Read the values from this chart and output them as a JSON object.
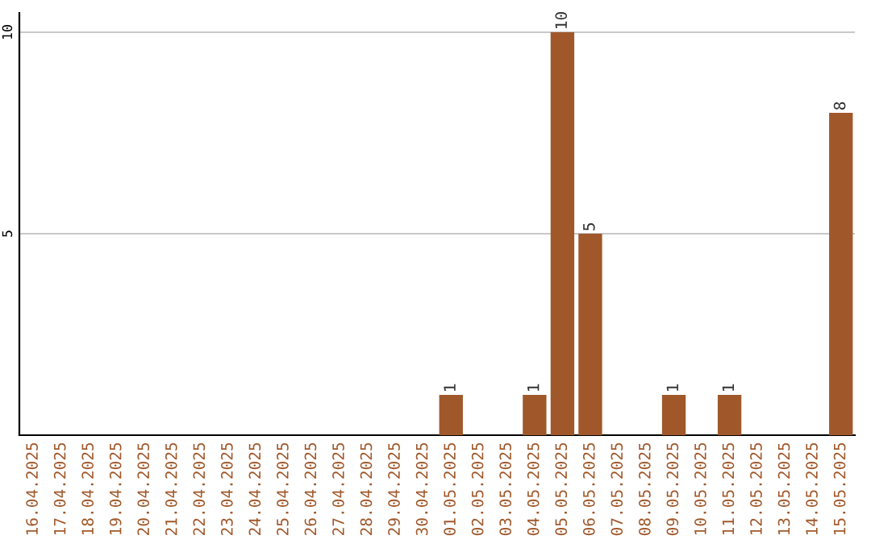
{
  "chart_data": {
    "type": "bar",
    "categories": [
      "16.04.2025",
      "17.04.2025",
      "18.04.2025",
      "19.04.2025",
      "20.04.2025",
      "21.04.2025",
      "22.04.2025",
      "23.04.2025",
      "24.04.2025",
      "25.04.2025",
      "26.04.2025",
      "27.04.2025",
      "28.04.2025",
      "29.04.2025",
      "30.04.2025",
      "01.05.2025",
      "02.05.2025",
      "03.05.2025",
      "04.05.2025",
      "05.05.2025",
      "06.05.2025",
      "07.05.2025",
      "08.05.2025",
      "09.05.2025",
      "10.05.2025",
      "11.05.2025",
      "12.05.2025",
      "13.05.2025",
      "14.05.2025",
      "15.05.2025"
    ],
    "values": [
      0,
      0,
      0,
      0,
      0,
      0,
      0,
      0,
      0,
      0,
      0,
      0,
      0,
      0,
      0,
      1,
      0,
      0,
      1,
      10,
      5,
      0,
      0,
      1,
      0,
      1,
      0,
      0,
      0,
      8
    ],
    "value_labels": [
      null,
      null,
      null,
      null,
      null,
      null,
      null,
      null,
      null,
      null,
      null,
      null,
      null,
      null,
      null,
      "1",
      null,
      null,
      "1",
      "10",
      "5",
      null,
      null,
      "1",
      null,
      "1",
      null,
      null,
      null,
      "8"
    ],
    "color": "#a0582a",
    "ylim": [
      0,
      10.48
    ],
    "yticks": [
      5,
      10
    ],
    "grid": "y"
  }
}
